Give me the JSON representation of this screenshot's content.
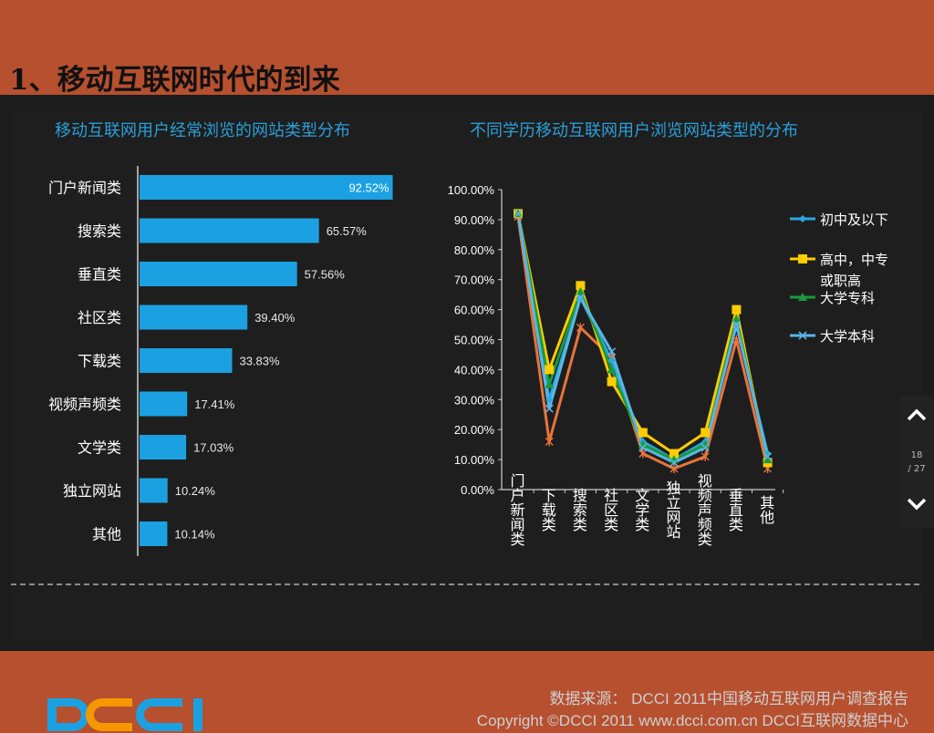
{
  "slide": {
    "title": "1、移动互联网时代的到来"
  },
  "colors": {
    "background": "#b6502f",
    "panel": "#1c1c1c",
    "bar": "#1ba1e2",
    "title_blue": "#2a9fd8"
  },
  "chart_data": [
    {
      "type": "bar",
      "orientation": "horizontal",
      "title": "移动互联网用户经常浏览的网站类型分布",
      "categories": [
        "门户新闻类",
        "搜索类",
        "垂直类",
        "社区类",
        "下载类",
        "视频声频类",
        "文学类",
        "独立网站",
        "其他"
      ],
      "values": [
        92.52,
        65.57,
        57.56,
        39.4,
        33.83,
        17.41,
        17.03,
        10.24,
        10.14
      ],
      "value_labels": [
        "92.52%",
        "65.57%",
        "57.56%",
        "39.40%",
        "33.83%",
        "17.41%",
        "17.03%",
        "10.24%",
        "10.14%"
      ],
      "xlim": [
        0,
        100
      ],
      "color": "#1ba1e2"
    },
    {
      "type": "line",
      "title": "不同学历移动互联网用户浏览网站类型的分布",
      "categories": [
        "门户新闻类",
        "下载类",
        "搜索类",
        "社区类",
        "文学类",
        "独立网站",
        "视频声频类",
        "垂直类",
        "其他"
      ],
      "ylim": [
        0,
        100
      ],
      "yticks": [
        "100.00%",
        "90.00%",
        "80.00%",
        "70.00%",
        "60.00%",
        "50.00%",
        "40.00%",
        "30.00%",
        "20.00%",
        "10.00%",
        "0.00%"
      ],
      "legend_position": "right",
      "series": [
        {
          "name": "初中及以下",
          "color": "#29a9e1",
          "marker": "diamond",
          "values": [
            92,
            30,
            64,
            43,
            16,
            10,
            16,
            55,
            12
          ]
        },
        {
          "name": "高中，中专或职高",
          "color": "#ffcc00",
          "marker": "square",
          "values": [
            92,
            40,
            68,
            36,
            19,
            12,
            19,
            60,
            9
          ]
        },
        {
          "name": "大学专科",
          "color": "#1a9a3c",
          "marker": "triangle",
          "values": [
            92,
            35,
            66,
            40,
            15,
            10,
            15,
            57,
            10
          ]
        },
        {
          "name": "大学本科",
          "color": "#5bb5e8",
          "marker": "x",
          "values": [
            92,
            27,
            64,
            46,
            14,
            9,
            14,
            55,
            11
          ]
        },
        {
          "name": "",
          "color": "#e8743b",
          "marker": "star",
          "values": [
            91,
            16,
            54,
            44,
            12,
            7,
            11,
            50,
            7
          ]
        }
      ]
    }
  ],
  "nav": {
    "page": "18",
    "total": "/ 27",
    "up_icon": "chevron-up-icon",
    "down_icon": "chevron-down-icon"
  },
  "footer": {
    "source": "数据来源： DCCI 2011中国移动互联网用户调查报告",
    "copyright": "Copyright ©DCCI 2011 www.dcci.com.cn       DCCI互联网数据中心",
    "logo_text": "DCCI"
  }
}
